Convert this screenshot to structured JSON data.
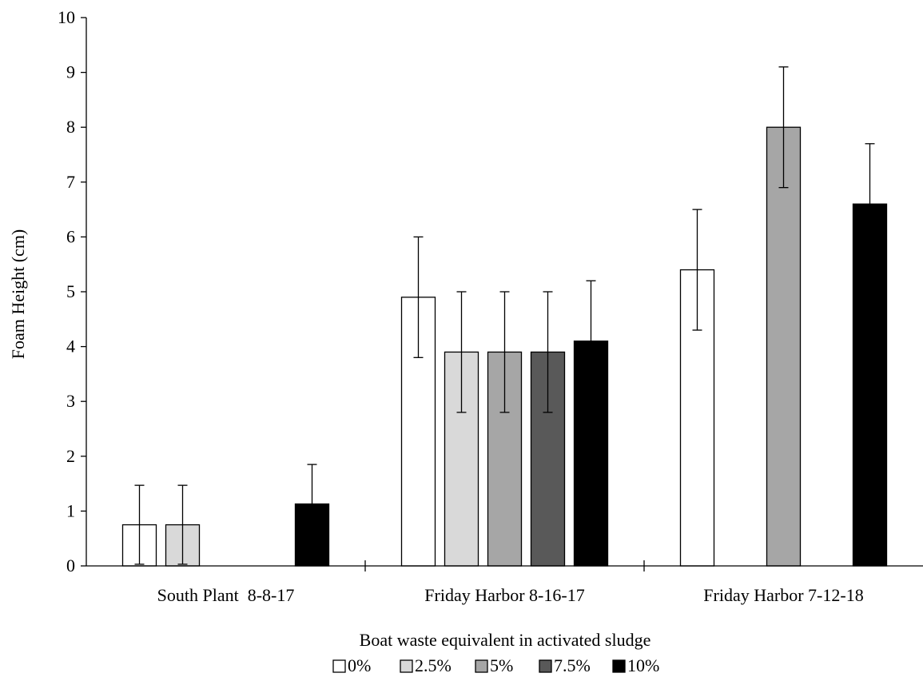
{
  "chart_data": {
    "type": "bar",
    "title": "",
    "xlabel": "Boat waste equivalent in activated sludge",
    "ylabel": "Foam Height (cm)",
    "ylim": [
      0,
      10
    ],
    "yticks": [
      "0",
      "1",
      "2",
      "3",
      "4",
      "5",
      "6",
      "7",
      "8",
      "9",
      "10"
    ],
    "grid": false,
    "legend_position": "bottom",
    "categories": [
      "South Plant  8-8-17",
      "Friday Harbor 8-16-17",
      "Friday Harbor 7-12-18"
    ],
    "series": [
      {
        "name": "0%",
        "color": "#ffffff",
        "values": [
          0.75,
          4.9,
          5.4
        ],
        "errors": [
          0.72,
          1.1,
          1.1
        ]
      },
      {
        "name": "2.5%",
        "color": "#d9d9d9",
        "values": [
          0.75,
          3.9,
          null
        ],
        "errors": [
          0.72,
          1.1,
          null
        ]
      },
      {
        "name": "5%",
        "color": "#a6a6a6",
        "values": [
          null,
          3.9,
          8.0
        ],
        "errors": [
          null,
          1.1,
          1.1
        ]
      },
      {
        "name": "7.5%",
        "color": "#595959",
        "values": [
          null,
          3.9,
          null
        ],
        "errors": [
          null,
          1.1,
          null
        ]
      },
      {
        "name": "10%",
        "color": "#000000",
        "values": [
          1.13,
          4.1,
          6.6
        ],
        "errors": [
          0.72,
          1.1,
          1.1
        ]
      }
    ]
  }
}
